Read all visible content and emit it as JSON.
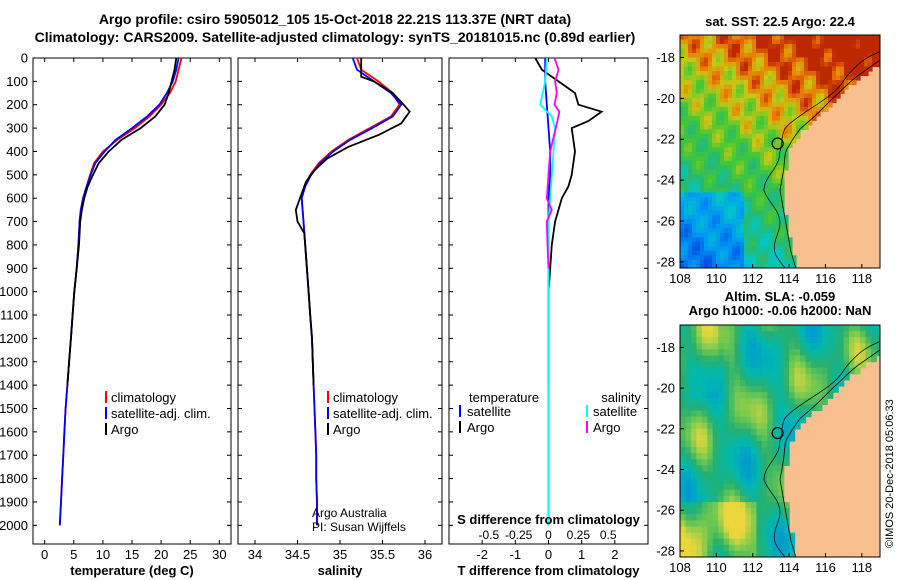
{
  "header": {
    "line1": "Argo profile: csiro 5905012_105 15-Oct-2018 22.21S 113.37E (NRT data)",
    "line2": "Climatology: CARS2009. Satellite-adjusted climatology: synTS_20181015.nc (0.89d earlier)"
  },
  "credit": {
    "line1": "Argo Australia",
    "line2": "PI: Susan Wijffels"
  },
  "stamp": "©IMOS 20-Dec-2018 05:06:33",
  "colors": {
    "climatology": "#ff0000",
    "satellite": "#0000ff",
    "argo": "#000000",
    "temp_diff": "#00ffff",
    "sal_diff": "#ff00ff",
    "land": "#f7c08e"
  },
  "chart_data": [
    {
      "type": "line",
      "xlabel": "temperature (deg C)",
      "ylabel": "",
      "xlim": [
        -2,
        32
      ],
      "ylim": [
        2080,
        0
      ],
      "xticks": [
        0,
        5,
        10,
        15,
        20,
        25,
        30
      ],
      "yticks": [
        0,
        100,
        200,
        300,
        400,
        500,
        600,
        700,
        800,
        900,
        1000,
        1100,
        1200,
        1300,
        1400,
        1500,
        1600,
        1700,
        1800,
        1900,
        2000
      ],
      "legend": [
        "climatology",
        "satellite-adj. clim.",
        "Argo"
      ],
      "series": [
        {
          "name": "climatology",
          "color": "#ff0000",
          "points": [
            [
              23.5,
              0
            ],
            [
              23,
              50
            ],
            [
              22.5,
              100
            ],
            [
              21.5,
              150
            ],
            [
              20,
              200
            ],
            [
              18,
              250
            ],
            [
              15.5,
              300
            ],
            [
              12.5,
              350
            ],
            [
              10,
              400
            ],
            [
              8.5,
              450
            ],
            [
              7.8,
              500
            ],
            [
              7.2,
              550
            ],
            [
              6.6,
              600
            ],
            [
              6.2,
              650
            ],
            [
              6,
              700
            ],
            [
              5.8,
              800
            ],
            [
              5.5,
              900
            ],
            [
              5.1,
              1000
            ],
            [
              4.8,
              1100
            ],
            [
              4.5,
              1200
            ],
            [
              4.2,
              1300
            ],
            [
              3.9,
              1400
            ],
            [
              3.6,
              1500
            ],
            [
              3.4,
              1600
            ],
            [
              3.2,
              1700
            ],
            [
              3,
              1800
            ],
            [
              2.8,
              1900
            ],
            [
              2.6,
              2000
            ]
          ]
        },
        {
          "name": "satellite-adj. clim.",
          "color": "#0000ff",
          "points": [
            [
              23,
              0
            ],
            [
              22.6,
              50
            ],
            [
              22,
              100
            ],
            [
              21,
              150
            ],
            [
              19.7,
              200
            ],
            [
              17.6,
              250
            ],
            [
              15,
              300
            ],
            [
              12.2,
              350
            ],
            [
              10.3,
              400
            ],
            [
              8.7,
              450
            ],
            [
              7.9,
              500
            ],
            [
              7.2,
              550
            ],
            [
              6.6,
              600
            ],
            [
              6.2,
              650
            ],
            [
              6,
              700
            ],
            [
              5.8,
              800
            ],
            [
              5.5,
              900
            ],
            [
              5.1,
              1000
            ],
            [
              4.8,
              1100
            ],
            [
              4.5,
              1200
            ],
            [
              4.2,
              1300
            ],
            [
              3.9,
              1400
            ],
            [
              3.6,
              1500
            ],
            [
              3.4,
              1600
            ],
            [
              3.2,
              1700
            ],
            [
              3,
              1800
            ],
            [
              2.8,
              1900
            ],
            [
              2.6,
              2000
            ]
          ]
        },
        {
          "name": "Argo",
          "color": "#000000",
          "points": [
            [
              22.6,
              0
            ],
            [
              22.3,
              50
            ],
            [
              21.8,
              100
            ],
            [
              21.3,
              150
            ],
            [
              20.6,
              200
            ],
            [
              19,
              250
            ],
            [
              16.5,
              300
            ],
            [
              13.2,
              350
            ],
            [
              11,
              400
            ],
            [
              9.3,
              450
            ],
            [
              8.3,
              500
            ],
            [
              7.4,
              550
            ],
            [
              6.8,
              600
            ],
            [
              6.4,
              650
            ],
            [
              6.1,
              700
            ],
            [
              5.9,
              800
            ],
            [
              5.5,
              900
            ],
            [
              5.1,
              1000
            ],
            [
              4.8,
              1100
            ],
            [
              4.5,
              1200
            ],
            [
              4.2,
              1300
            ],
            [
              3.9,
              1400
            ]
          ]
        }
      ]
    },
    {
      "type": "line",
      "xlabel": "salinity",
      "ylabel": "",
      "xlim": [
        33.8,
        36.2
      ],
      "ylim": [
        2080,
        0
      ],
      "xticks": [
        34,
        34.5,
        35,
        35.5,
        36
      ],
      "legend": [
        "climatology",
        "satellite-adj. clim.",
        "Argo"
      ],
      "series": [
        {
          "name": "climatology",
          "color": "#ff0000",
          "points": [
            [
              35.2,
              0
            ],
            [
              35.25,
              50
            ],
            [
              35.45,
              100
            ],
            [
              35.62,
              150
            ],
            [
              35.7,
              200
            ],
            [
              35.6,
              250
            ],
            [
              35.35,
              300
            ],
            [
              35.1,
              350
            ],
            [
              34.9,
              400
            ],
            [
              34.75,
              450
            ],
            [
              34.65,
              500
            ],
            [
              34.58,
              550
            ],
            [
              34.55,
              600
            ],
            [
              34.56,
              650
            ],
            [
              34.57,
              700
            ],
            [
              34.59,
              800
            ],
            [
              34.61,
              900
            ],
            [
              34.63,
              1000
            ],
            [
              34.65,
              1100
            ],
            [
              34.67,
              1200
            ],
            [
              34.68,
              1300
            ],
            [
              34.69,
              1400
            ],
            [
              34.7,
              1500
            ],
            [
              34.71,
              1600
            ],
            [
              34.72,
              1700
            ],
            [
              34.72,
              1800
            ],
            [
              34.73,
              1900
            ],
            [
              34.73,
              2000
            ]
          ]
        },
        {
          "name": "satellite-adj. clim.",
          "color": "#0000ff",
          "points": [
            [
              35.15,
              0
            ],
            [
              35.2,
              50
            ],
            [
              35.4,
              100
            ],
            [
              35.6,
              150
            ],
            [
              35.72,
              200
            ],
            [
              35.62,
              250
            ],
            [
              35.38,
              300
            ],
            [
              35.12,
              350
            ],
            [
              34.92,
              400
            ],
            [
              34.77,
              450
            ],
            [
              34.66,
              500
            ],
            [
              34.59,
              550
            ],
            [
              34.55,
              600
            ],
            [
              34.56,
              650
            ],
            [
              34.57,
              700
            ],
            [
              34.59,
              800
            ],
            [
              34.61,
              900
            ],
            [
              34.63,
              1000
            ],
            [
              34.65,
              1100
            ],
            [
              34.67,
              1200
            ],
            [
              34.68,
              1300
            ],
            [
              34.69,
              1400
            ],
            [
              34.7,
              1500
            ],
            [
              34.71,
              1600
            ],
            [
              34.72,
              1700
            ],
            [
              34.72,
              1800
            ],
            [
              34.73,
              1900
            ],
            [
              34.73,
              2000
            ]
          ]
        },
        {
          "name": "Argo",
          "color": "#000000",
          "points": [
            [
              35.25,
              0
            ],
            [
              35.25,
              80
            ],
            [
              35.4,
              100
            ],
            [
              35.62,
              150
            ],
            [
              35.75,
              200
            ],
            [
              35.82,
              230
            ],
            [
              35.72,
              280
            ],
            [
              35.45,
              330
            ],
            [
              35.1,
              380
            ],
            [
              34.85,
              430
            ],
            [
              34.7,
              480
            ],
            [
              34.6,
              530
            ],
            [
              34.55,
              580
            ],
            [
              34.48,
              650
            ],
            [
              34.5,
              700
            ],
            [
              34.58,
              750
            ],
            [
              34.59,
              800
            ],
            [
              34.61,
              900
            ],
            [
              34.63,
              1000
            ],
            [
              34.65,
              1100
            ],
            [
              34.67,
              1200
            ],
            [
              34.68,
              1300
            ],
            [
              34.69,
              1400
            ]
          ]
        }
      ]
    },
    {
      "type": "line",
      "xlabel": "T difference from climatology",
      "ylabel": "",
      "xlim": [
        -3,
        3
      ],
      "ylim": [
        2080,
        0
      ],
      "xticks": [
        -2,
        -1,
        0,
        1,
        2
      ],
      "secondary_axis": {
        "label": "S difference from climatology",
        "ticks": [
          "-0.5",
          "-0.25",
          "0",
          "0.25",
          "0.5"
        ]
      },
      "legend": [
        "temperature",
        "satellite",
        "Argo",
        "salinity",
        "satellite",
        "Argo"
      ],
      "series": [
        {
          "name": "temperature Argo",
          "color": "#000000",
          "points": [
            [
              -0.4,
              0
            ],
            [
              -0.2,
              50
            ],
            [
              0.3,
              100
            ],
            [
              0.8,
              150
            ],
            [
              0.9,
              200
            ],
            [
              1.6,
              230
            ],
            [
              1.2,
              270
            ],
            [
              0.7,
              300
            ],
            [
              0.8,
              400
            ],
            [
              0.7,
              500
            ],
            [
              0.6,
              550
            ],
            [
              0.4,
              600
            ],
            [
              0.2,
              700
            ],
            [
              0.1,
              800
            ],
            [
              0.05,
              900
            ],
            [
              0,
              1000
            ],
            [
              0,
              1100
            ],
            [
              0,
              1200
            ],
            [
              0,
              1300
            ],
            [
              0,
              1400
            ]
          ]
        },
        {
          "name": "temperature satellite",
          "color": "#0000ff",
          "points": [
            [
              -0.1,
              0
            ],
            [
              -0.1,
              100
            ],
            [
              -0.05,
              200
            ],
            [
              0,
              300
            ],
            [
              0.05,
              400
            ],
            [
              0.05,
              500
            ],
            [
              0,
              600
            ],
            [
              0,
              700
            ],
            [
              0,
              800
            ],
            [
              0,
              900
            ],
            [
              0,
              1000
            ],
            [
              0,
              1100
            ],
            [
              0,
              1200
            ],
            [
              0,
              1300
            ],
            [
              0,
              1400
            ],
            [
              0,
              1500
            ],
            [
              0,
              1600
            ],
            [
              0,
              1700
            ],
            [
              0,
              1800
            ],
            [
              0,
              1900
            ],
            [
              0,
              2000
            ]
          ]
        },
        {
          "name": "salinity satellite",
          "color": "#00ffff",
          "points": [
            [
              -0.05,
              0
            ],
            [
              -0.1,
              100
            ],
            [
              -0.25,
              200
            ],
            [
              0.1,
              250
            ],
            [
              0.2,
              300
            ],
            [
              0.15,
              400
            ],
            [
              0.1,
              500
            ],
            [
              0.05,
              600
            ],
            [
              0,
              700
            ],
            [
              0,
              800
            ],
            [
              0,
              900
            ],
            [
              0,
              1000
            ],
            [
              0,
              1200
            ],
            [
              0,
              1400
            ],
            [
              0,
              1600
            ],
            [
              0,
              1800
            ],
            [
              0,
              2000
            ]
          ]
        },
        {
          "name": "salinity Argo",
          "color": "#ff00ff",
          "points": [
            [
              0.18,
              0
            ],
            [
              0.3,
              50
            ],
            [
              0.2,
              100
            ],
            [
              0.25,
              150
            ],
            [
              0.18,
              200
            ],
            [
              0.33,
              230
            ],
            [
              0.22,
              300
            ],
            [
              0.05,
              400
            ],
            [
              0,
              500
            ],
            [
              -0.05,
              600
            ],
            [
              0.1,
              650
            ],
            [
              -0.05,
              700
            ],
            [
              -0.03,
              800
            ],
            [
              0,
              900
            ]
          ]
        }
      ]
    },
    {
      "type": "heatmap",
      "title": "sat. SST: 22.5 Argo: 22.4",
      "xlabel": "",
      "ylabel": "",
      "xlim": [
        108,
        119
      ],
      "ylim": [
        -28.3,
        -16.9
      ],
      "xticks": [
        108,
        110,
        112,
        114,
        116,
        118
      ],
      "yticks": [
        -18,
        -20,
        -22,
        -24,
        -26,
        -28
      ],
      "marker": {
        "lon": 113.37,
        "lat": -22.21
      }
    },
    {
      "type": "heatmap",
      "title": "Altim. SLA: -0.059",
      "subtitle": "Argo h1000: -0.06 h2000: NaN",
      "xlabel": "",
      "ylabel": "",
      "xlim": [
        108,
        119
      ],
      "ylim": [
        -28.3,
        -16.9
      ],
      "xticks": [
        108,
        110,
        112,
        114,
        116,
        118
      ],
      "yticks": [
        -18,
        -20,
        -22,
        -24,
        -26,
        -28
      ],
      "marker": {
        "lon": 113.37,
        "lat": -22.21
      }
    }
  ]
}
